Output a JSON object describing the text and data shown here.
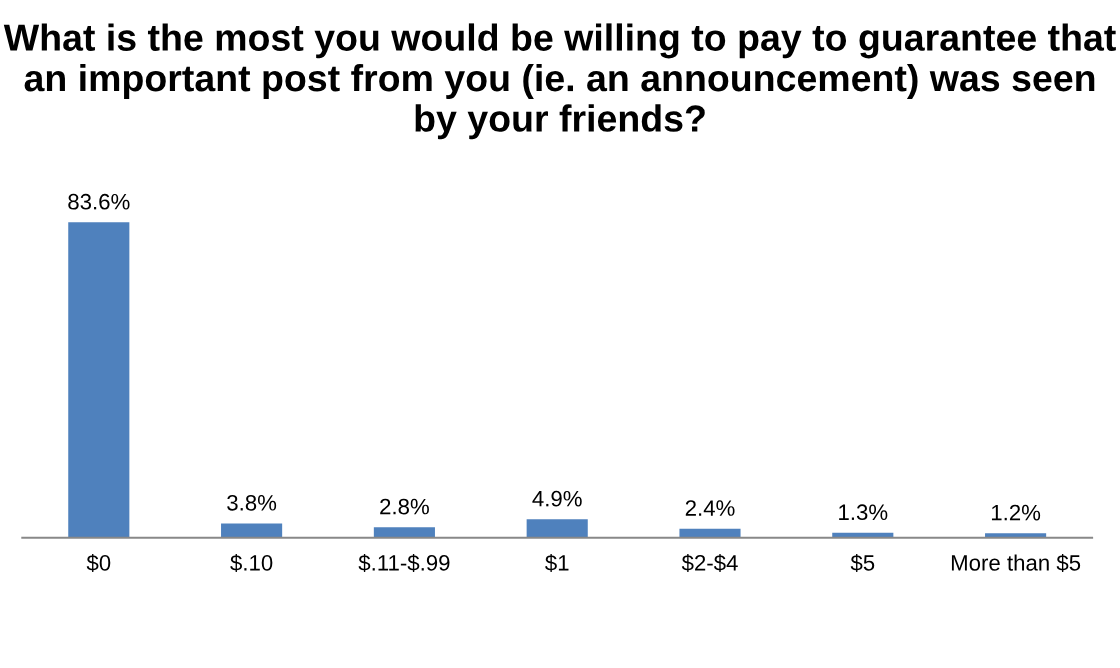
{
  "chart_data": {
    "type": "bar",
    "title": "What is the most you would be willing to pay to guarantee that an important post from you (ie. an announcement) was seen by your friends?",
    "categories": [
      "$0",
      "$.10",
      "$.11-$.99",
      "$1",
      "$2-$4",
      "$5",
      "More than $5"
    ],
    "values": [
      83.6,
      3.8,
      2.8,
      4.9,
      2.4,
      1.3,
      1.2
    ],
    "value_labels": [
      "83.6%",
      "3.8%",
      "2.8%",
      "4.9%",
      "2.4%",
      "1.3%",
      "1.2%"
    ],
    "color": "#4f81bd",
    "grid": false,
    "legend": false
  }
}
